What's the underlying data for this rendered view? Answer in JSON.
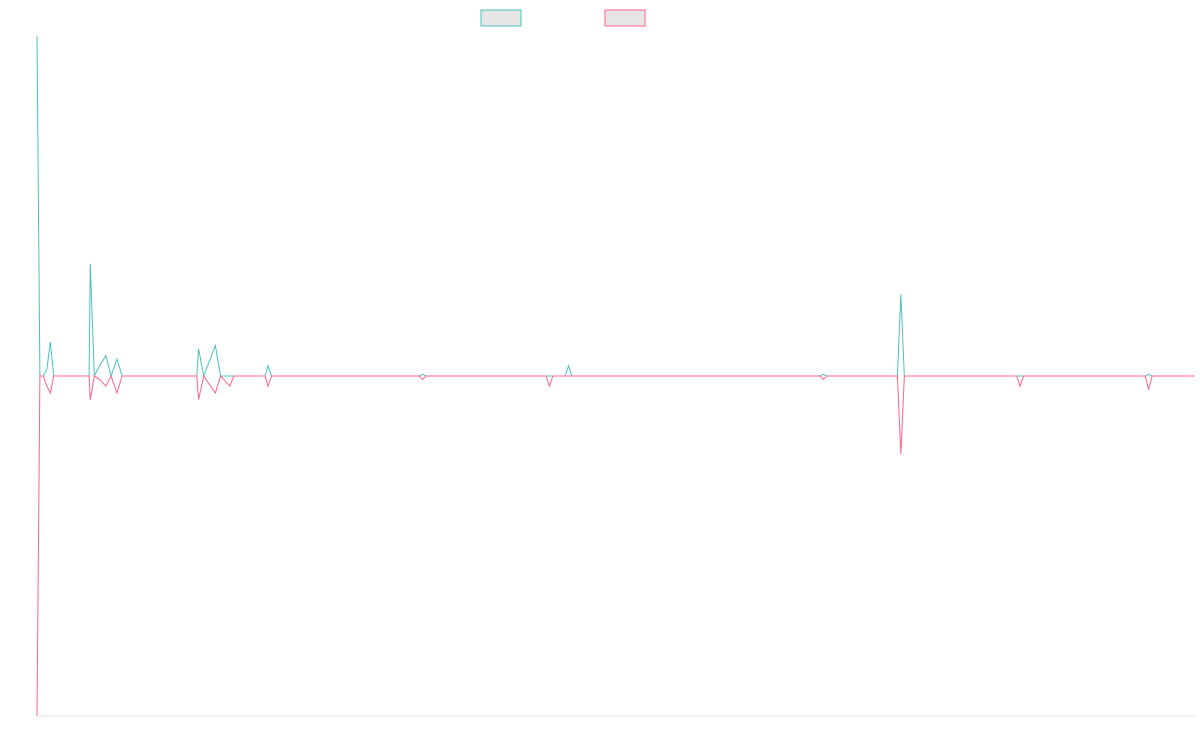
{
  "colors": {
    "series_a": "#4bc0c0",
    "series_b": "#ff6384",
    "legend_fill": "#e6e6e6",
    "axis": "#e0e0e0"
  },
  "chart_data": {
    "type": "line",
    "title": "",
    "xlabel": "",
    "ylabel": "",
    "grid": false,
    "legend": "top-center",
    "xlim": [
      0,
      200
    ],
    "ylim": [
      -100,
      100
    ],
    "series": [
      {
        "color": "#4bc0c0",
        "values": [
          {
            "x": 0,
            "y": 100
          },
          {
            "x": 0.5,
            "y": 0
          },
          {
            "x": 1.1,
            "y": 0
          },
          {
            "x": 1.7,
            "y": 2
          },
          {
            "x": 2.3,
            "y": 10
          },
          {
            "x": 2.9,
            "y": 0
          },
          {
            "x": 9,
            "y": 0
          },
          {
            "x": 9.2,
            "y": 33
          },
          {
            "x": 9.9,
            "y": 0
          },
          {
            "x": 10.8,
            "y": 3
          },
          {
            "x": 11.9,
            "y": 6
          },
          {
            "x": 12.8,
            "y": 0
          },
          {
            "x": 13.8,
            "y": 5
          },
          {
            "x": 14.7,
            "y": 0
          },
          {
            "x": 27.6,
            "y": 0
          },
          {
            "x": 27.9,
            "y": 8
          },
          {
            "x": 28.8,
            "y": 0
          },
          {
            "x": 30.8,
            "y": 9
          },
          {
            "x": 31.7,
            "y": 0
          },
          {
            "x": 39.4,
            "y": 0
          },
          {
            "x": 39.9,
            "y": 3
          },
          {
            "x": 40.5,
            "y": 0
          },
          {
            "x": 66.0,
            "y": 0
          },
          {
            "x": 66.6,
            "y": 0.5
          },
          {
            "x": 67.2,
            "y": 0
          },
          {
            "x": 91.2,
            "y": 0
          },
          {
            "x": 91.8,
            "y": 3
          },
          {
            "x": 92.4,
            "y": 0
          },
          {
            "x": 135.2,
            "y": 0
          },
          {
            "x": 135.8,
            "y": 0.5
          },
          {
            "x": 136.4,
            "y": 0
          },
          {
            "x": 148.6,
            "y": 0
          },
          {
            "x": 149.2,
            "y": 24
          },
          {
            "x": 149.8,
            "y": 0
          },
          {
            "x": 191.4,
            "y": 0
          },
          {
            "x": 192.0,
            "y": 0.5
          },
          {
            "x": 192.6,
            "y": 0
          },
          {
            "x": 200,
            "y": 0
          }
        ]
      },
      {
        "color": "#ff6384",
        "values": [
          {
            "x": 0,
            "y": -100
          },
          {
            "x": 0.5,
            "y": 0
          },
          {
            "x": 1.1,
            "y": 0
          },
          {
            "x": 1.7,
            "y": -3
          },
          {
            "x": 2.3,
            "y": -5
          },
          {
            "x": 2.9,
            "y": 0
          },
          {
            "x": 9,
            "y": 0
          },
          {
            "x": 9.2,
            "y": -7
          },
          {
            "x": 9.9,
            "y": 0
          },
          {
            "x": 10.8,
            "y": -1
          },
          {
            "x": 11.9,
            "y": -3
          },
          {
            "x": 12.8,
            "y": 0
          },
          {
            "x": 13.8,
            "y": -5
          },
          {
            "x": 14.7,
            "y": 0
          },
          {
            "x": 27.6,
            "y": 0
          },
          {
            "x": 27.9,
            "y": -7
          },
          {
            "x": 28.8,
            "y": 0
          },
          {
            "x": 30.8,
            "y": -5
          },
          {
            "x": 31.7,
            "y": 0
          },
          {
            "x": 33.3,
            "y": -3
          },
          {
            "x": 34.0,
            "y": 0
          },
          {
            "x": 39.4,
            "y": 0
          },
          {
            "x": 39.9,
            "y": -3
          },
          {
            "x": 40.5,
            "y": 0
          },
          {
            "x": 66.0,
            "y": 0
          },
          {
            "x": 66.6,
            "y": -1
          },
          {
            "x": 67.2,
            "y": 0
          },
          {
            "x": 87.9,
            "y": 0
          },
          {
            "x": 88.5,
            "y": -3
          },
          {
            "x": 89.1,
            "y": 0
          },
          {
            "x": 135.2,
            "y": 0
          },
          {
            "x": 135.8,
            "y": -1
          },
          {
            "x": 136.4,
            "y": 0
          },
          {
            "x": 148.6,
            "y": 0
          },
          {
            "x": 149.2,
            "y": -23
          },
          {
            "x": 149.8,
            "y": 0
          },
          {
            "x": 169.2,
            "y": 0
          },
          {
            "x": 169.8,
            "y": -3
          },
          {
            "x": 170.4,
            "y": 0
          },
          {
            "x": 191.4,
            "y": 0
          },
          {
            "x": 192.0,
            "y": -4
          },
          {
            "x": 192.6,
            "y": 0
          },
          {
            "x": 200,
            "y": 0
          }
        ]
      }
    ]
  }
}
